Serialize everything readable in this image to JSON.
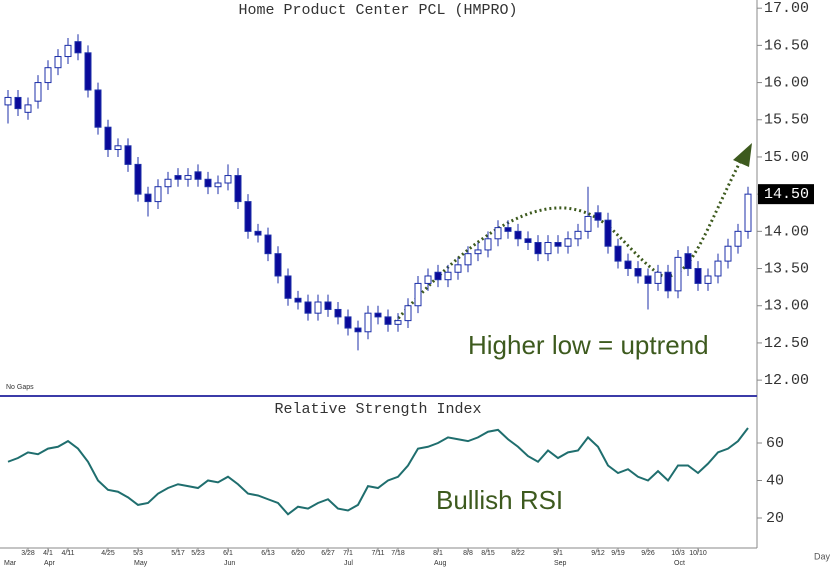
{
  "chart_data": [
    {
      "type": "candlestick",
      "title": "Home Product Center PCL (HMPRO)",
      "annotation": "Higher low = uptrend",
      "note": "No Gaps",
      "x_axis_label": "Day",
      "categories": [
        null,
        null,
        "3/28",
        null,
        "4/1",
        null,
        "4/11",
        null,
        null,
        null,
        "4/25",
        null,
        null,
        "5/3",
        null,
        null,
        null,
        "5/17",
        null,
        "5/23",
        null,
        null,
        "6/1",
        null,
        null,
        null,
        "6/13",
        null,
        null,
        "6/20",
        null,
        null,
        "6/27",
        null,
        "7/1",
        null,
        null,
        "7/11",
        null,
        "7/18",
        null,
        null,
        null,
        "8/1",
        null,
        null,
        "8/8",
        null,
        "8/15",
        null,
        null,
        "8/22",
        null,
        null,
        null,
        "9/1",
        null,
        null,
        null,
        "9/12",
        null,
        "9/19",
        null,
        null,
        "9/26",
        null,
        null,
        "10/3",
        null,
        "10/10",
        null,
        null,
        null,
        null,
        null
      ],
      "months": [
        "Mar",
        null,
        null,
        null,
        "Apr",
        null,
        null,
        null,
        null,
        null,
        null,
        null,
        null,
        "May",
        null,
        null,
        null,
        null,
        null,
        null,
        null,
        null,
        "Jun",
        null,
        null,
        null,
        null,
        null,
        null,
        null,
        null,
        null,
        null,
        null,
        "Jul",
        null,
        null,
        null,
        null,
        null,
        null,
        null,
        null,
        "Aug",
        null,
        null,
        null,
        null,
        null,
        null,
        null,
        null,
        null,
        null,
        null,
        "Sep",
        null,
        null,
        null,
        null,
        null,
        null,
        null,
        null,
        null,
        null,
        null,
        "Oct",
        null,
        null,
        null,
        null,
        null,
        null,
        null
      ],
      "open": [
        15.7,
        15.8,
        15.6,
        15.75,
        16.0,
        16.2,
        16.35,
        16.55,
        16.4,
        15.9,
        15.4,
        15.1,
        15.15,
        14.9,
        14.5,
        14.4,
        14.6,
        14.75,
        14.7,
        14.8,
        14.7,
        14.6,
        14.65,
        14.75,
        14.4,
        14.0,
        13.95,
        13.7,
        13.4,
        13.1,
        13.05,
        12.9,
        13.05,
        12.95,
        12.85,
        12.7,
        12.65,
        12.9,
        12.85,
        12.75,
        12.8,
        13.0,
        13.3,
        13.45,
        13.35,
        13.45,
        13.55,
        13.7,
        13.75,
        13.9,
        14.05,
        14.0,
        13.9,
        13.85,
        13.7,
        13.85,
        13.8,
        13.9,
        14.0,
        14.25,
        14.15,
        13.8,
        13.6,
        13.5,
        13.4,
        13.3,
        13.45,
        13.2,
        13.7,
        13.5,
        13.3,
        13.4,
        13.6,
        13.8,
        14.0
      ],
      "high": [
        15.9,
        15.9,
        15.8,
        16.1,
        16.3,
        16.45,
        16.6,
        16.65,
        16.5,
        16.0,
        15.5,
        15.25,
        15.25,
        15.0,
        14.6,
        14.7,
        14.8,
        14.85,
        14.85,
        14.9,
        14.8,
        14.75,
        14.9,
        14.85,
        14.5,
        14.1,
        14.05,
        13.8,
        13.5,
        13.2,
        13.15,
        13.15,
        13.15,
        13.05,
        12.95,
        12.8,
        13.0,
        13.0,
        12.95,
        12.9,
        13.1,
        13.4,
        13.5,
        13.55,
        13.55,
        13.65,
        13.8,
        13.85,
        14.0,
        14.15,
        14.15,
        14.1,
        14.0,
        13.95,
        13.95,
        13.95,
        14.0,
        14.1,
        14.6,
        14.35,
        14.25,
        13.9,
        13.7,
        13.6,
        13.5,
        13.55,
        13.55,
        13.75,
        13.8,
        13.6,
        13.5,
        13.7,
        13.9,
        14.1,
        14.6
      ],
      "low": [
        15.45,
        15.55,
        15.5,
        15.65,
        15.9,
        16.1,
        16.25,
        16.3,
        15.8,
        15.3,
        15.0,
        15.0,
        14.8,
        14.4,
        14.2,
        14.3,
        14.5,
        14.6,
        14.6,
        14.6,
        14.5,
        14.5,
        14.55,
        14.3,
        13.9,
        13.85,
        13.6,
        13.3,
        13.0,
        12.95,
        12.8,
        12.8,
        12.85,
        12.75,
        12.6,
        12.4,
        12.55,
        12.75,
        12.65,
        12.65,
        12.7,
        12.9,
        13.2,
        13.25,
        13.25,
        13.35,
        13.45,
        13.6,
        13.65,
        13.8,
        13.9,
        13.8,
        13.75,
        13.6,
        13.6,
        13.7,
        13.7,
        13.8,
        13.9,
        14.05,
        13.7,
        13.5,
        13.4,
        13.3,
        12.95,
        13.2,
        13.1,
        13.1,
        13.4,
        13.2,
        13.2,
        13.3,
        13.5,
        13.7,
        13.9
      ],
      "close": [
        15.8,
        15.65,
        15.7,
        16.0,
        16.2,
        16.35,
        16.5,
        16.4,
        15.9,
        15.4,
        15.1,
        15.15,
        14.9,
        14.5,
        14.4,
        14.6,
        14.7,
        14.7,
        14.75,
        14.7,
        14.6,
        14.65,
        14.75,
        14.4,
        14.0,
        13.95,
        13.7,
        13.4,
        13.1,
        13.05,
        12.9,
        13.05,
        12.95,
        12.85,
        12.7,
        12.65,
        12.9,
        12.85,
        12.75,
        12.8,
        13.0,
        13.3,
        13.4,
        13.35,
        13.45,
        13.55,
        13.7,
        13.75,
        13.9,
        14.05,
        14.0,
        13.9,
        13.85,
        13.7,
        13.85,
        13.8,
        13.9,
        14.0,
        14.2,
        14.15,
        13.8,
        13.6,
        13.5,
        13.4,
        13.3,
        13.45,
        13.2,
        13.65,
        13.5,
        13.3,
        13.4,
        13.6,
        13.8,
        14.0,
        14.5
      ],
      "up_color": "#ffffff",
      "down_color": "#0a0a9a",
      "outline_color": "#1c2fa8",
      "last_price": {
        "value": 14.5,
        "label": "14.50"
      },
      "ylim": [
        11.8,
        17.11
      ],
      "yticks": [
        {
          "value": 12,
          "label": "12.00"
        },
        {
          "value": 12.5,
          "label": "12.50"
        },
        {
          "value": 13,
          "label": "13.00"
        },
        {
          "value": 13.5,
          "label": "13.50"
        },
        {
          "value": 14,
          "label": "14.00"
        },
        {
          "value": 14.5,
          "label": "14.50"
        },
        {
          "value": 15,
          "label": "15.00"
        },
        {
          "value": 15.5,
          "label": "15.50"
        },
        {
          "value": 16,
          "label": "16.00"
        },
        {
          "value": 16.5,
          "label": "16.50"
        },
        {
          "value": 17,
          "label": "17.00"
        }
      ],
      "grid": false
    },
    {
      "type": "line",
      "title": "Relative Strength Index",
      "annotation": "Bullish RSI",
      "color": "#1f6e6e",
      "values": [
        50,
        52,
        55,
        54,
        57,
        58,
        61,
        57,
        50,
        40,
        35,
        34,
        31,
        27,
        28,
        33,
        36,
        38,
        37,
        36,
        40,
        39,
        42,
        38,
        33,
        32,
        30,
        28,
        22,
        26,
        25,
        28,
        30,
        25,
        24,
        27,
        37,
        36,
        40,
        42,
        48,
        57,
        58,
        60,
        63,
        62,
        61,
        63,
        66,
        67,
        62,
        58,
        53,
        50,
        56,
        52,
        55,
        56,
        63,
        58,
        48,
        44,
        46,
        42,
        40,
        45,
        40,
        48,
        48,
        44,
        49,
        55,
        57,
        61,
        68
      ],
      "ylim": [
        4,
        84
      ],
      "yticks": [
        20,
        40,
        60
      ],
      "grid": false
    }
  ]
}
